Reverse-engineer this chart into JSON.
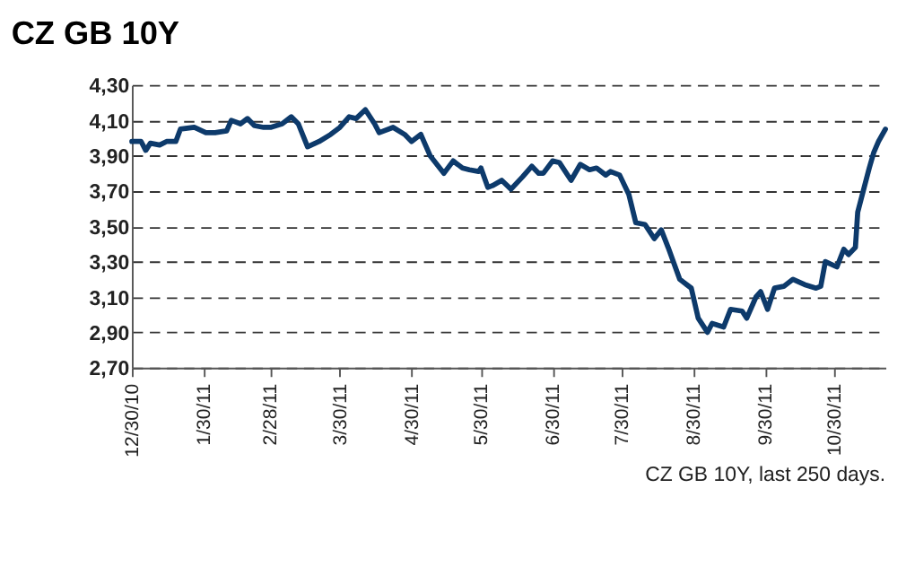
{
  "chart_data": {
    "type": "line",
    "title": "CZ GB 10Y",
    "annotations": [
      "CZ GB 10Y, last 250 days."
    ],
    "x": [
      "2010-12-30",
      "2011-01-03",
      "2011-01-05",
      "2011-01-07",
      "2011-01-11",
      "2011-01-14",
      "2011-01-18",
      "2011-01-20",
      "2011-01-26",
      "2011-01-31",
      "2011-02-04",
      "2011-02-09",
      "2011-02-11",
      "2011-02-15",
      "2011-02-18",
      "2011-02-21",
      "2011-02-25",
      "2011-02-28",
      "2011-03-05",
      "2011-03-09",
      "2011-03-12",
      "2011-03-16",
      "2011-03-21",
      "2011-03-26",
      "2011-03-30",
      "2011-04-03",
      "2011-04-06",
      "2011-04-10",
      "2011-04-14",
      "2011-04-16",
      "2011-04-22",
      "2011-04-27",
      "2011-04-30",
      "2011-05-04",
      "2011-05-08",
      "2011-05-14",
      "2011-05-18",
      "2011-05-22",
      "2011-05-25",
      "2011-05-29",
      "2011-05-30",
      "2011-06-02",
      "2011-06-04",
      "2011-06-08",
      "2011-06-12",
      "2011-06-17",
      "2011-06-21",
      "2011-06-24",
      "2011-06-26",
      "2011-06-30",
      "2011-07-03",
      "2011-07-08",
      "2011-07-12",
      "2011-07-16",
      "2011-07-19",
      "2011-07-23",
      "2011-07-25",
      "2011-07-29",
      "2011-08-02",
      "2011-08-05",
      "2011-08-09",
      "2011-08-13",
      "2011-08-16",
      "2011-08-19",
      "2011-08-24",
      "2011-08-29",
      "2011-09-01",
      "2011-09-05",
      "2011-09-07",
      "2011-09-12",
      "2011-09-15",
      "2011-09-20",
      "2011-09-22",
      "2011-09-26",
      "2011-09-28",
      "2011-10-01",
      "2011-10-04",
      "2011-10-08",
      "2011-10-12",
      "2011-10-17",
      "2011-10-22",
      "2011-10-24",
      "2011-10-26",
      "2011-10-31",
      "2011-11-03",
      "2011-11-05",
      "2011-11-08",
      "2011-11-09",
      "2011-11-11",
      "2011-11-14",
      "2011-11-16",
      "2011-11-18",
      "2011-11-21"
    ],
    "series": [
      {
        "color": "#0d3a6b",
        "values": [
          3.98,
          3.98,
          3.93,
          3.97,
          3.96,
          3.98,
          3.98,
          4.05,
          4.06,
          4.03,
          4.03,
          4.04,
          4.1,
          4.08,
          4.11,
          4.07,
          4.06,
          4.06,
          4.08,
          4.12,
          4.08,
          3.95,
          3.98,
          4.02,
          4.06,
          4.12,
          4.11,
          4.16,
          4.08,
          4.03,
          4.06,
          4.02,
          3.98,
          4.02,
          3.9,
          3.8,
          3.87,
          3.83,
          3.82,
          3.81,
          3.83,
          3.72,
          3.73,
          3.76,
          3.71,
          3.78,
          3.84,
          3.8,
          3.8,
          3.87,
          3.86,
          3.76,
          3.85,
          3.82,
          3.83,
          3.79,
          3.81,
          3.79,
          3.68,
          3.52,
          3.51,
          3.43,
          3.48,
          3.38,
          3.2,
          3.15,
          2.98,
          2.9,
          2.95,
          2.93,
          3.03,
          3.02,
          2.98,
          3.1,
          3.13,
          3.03,
          3.15,
          3.16,
          3.2,
          3.17,
          3.15,
          3.16,
          3.3,
          3.27,
          3.37,
          3.34,
          3.38,
          3.58,
          3.68,
          3.83,
          3.92,
          3.98,
          4.05
        ]
      }
    ],
    "xlim": [
      "2010-12-30",
      "2011-11-21"
    ],
    "xticks": [
      {
        "value": "2010-12-30",
        "label": "12/30/10"
      },
      {
        "value": "2011-01-30",
        "label": "1/30/11"
      },
      {
        "value": "2011-02-28",
        "label": "2/28/11"
      },
      {
        "value": "2011-03-30",
        "label": "3/30/11"
      },
      {
        "value": "2011-04-30",
        "label": "4/30/11"
      },
      {
        "value": "2011-05-30",
        "label": "5/30/11"
      },
      {
        "value": "2011-06-30",
        "label": "6/30/11"
      },
      {
        "value": "2011-07-30",
        "label": "7/30/11"
      },
      {
        "value": "2011-08-30",
        "label": "8/30/11"
      },
      {
        "value": "2011-09-30",
        "label": "9/30/11"
      },
      {
        "value": "2011-10-30",
        "label": "10/30/11"
      }
    ],
    "ylim": [
      2.7,
      4.3
    ],
    "yticks": [
      {
        "value": 2.7,
        "label": "2,70"
      },
      {
        "value": 2.9,
        "label": "2,90"
      },
      {
        "value": 3.1,
        "label": "3,10"
      },
      {
        "value": 3.3,
        "label": "3,30"
      },
      {
        "value": 3.5,
        "label": "3,50"
      },
      {
        "value": 3.7,
        "label": "3,70"
      },
      {
        "value": 3.9,
        "label": "3,90"
      },
      {
        "value": 4.1,
        "label": "4,10"
      },
      {
        "value": 4.3,
        "label": "4,30"
      }
    ],
    "grid": "y",
    "legend": false,
    "marker": "none",
    "line_style": "solid"
  }
}
